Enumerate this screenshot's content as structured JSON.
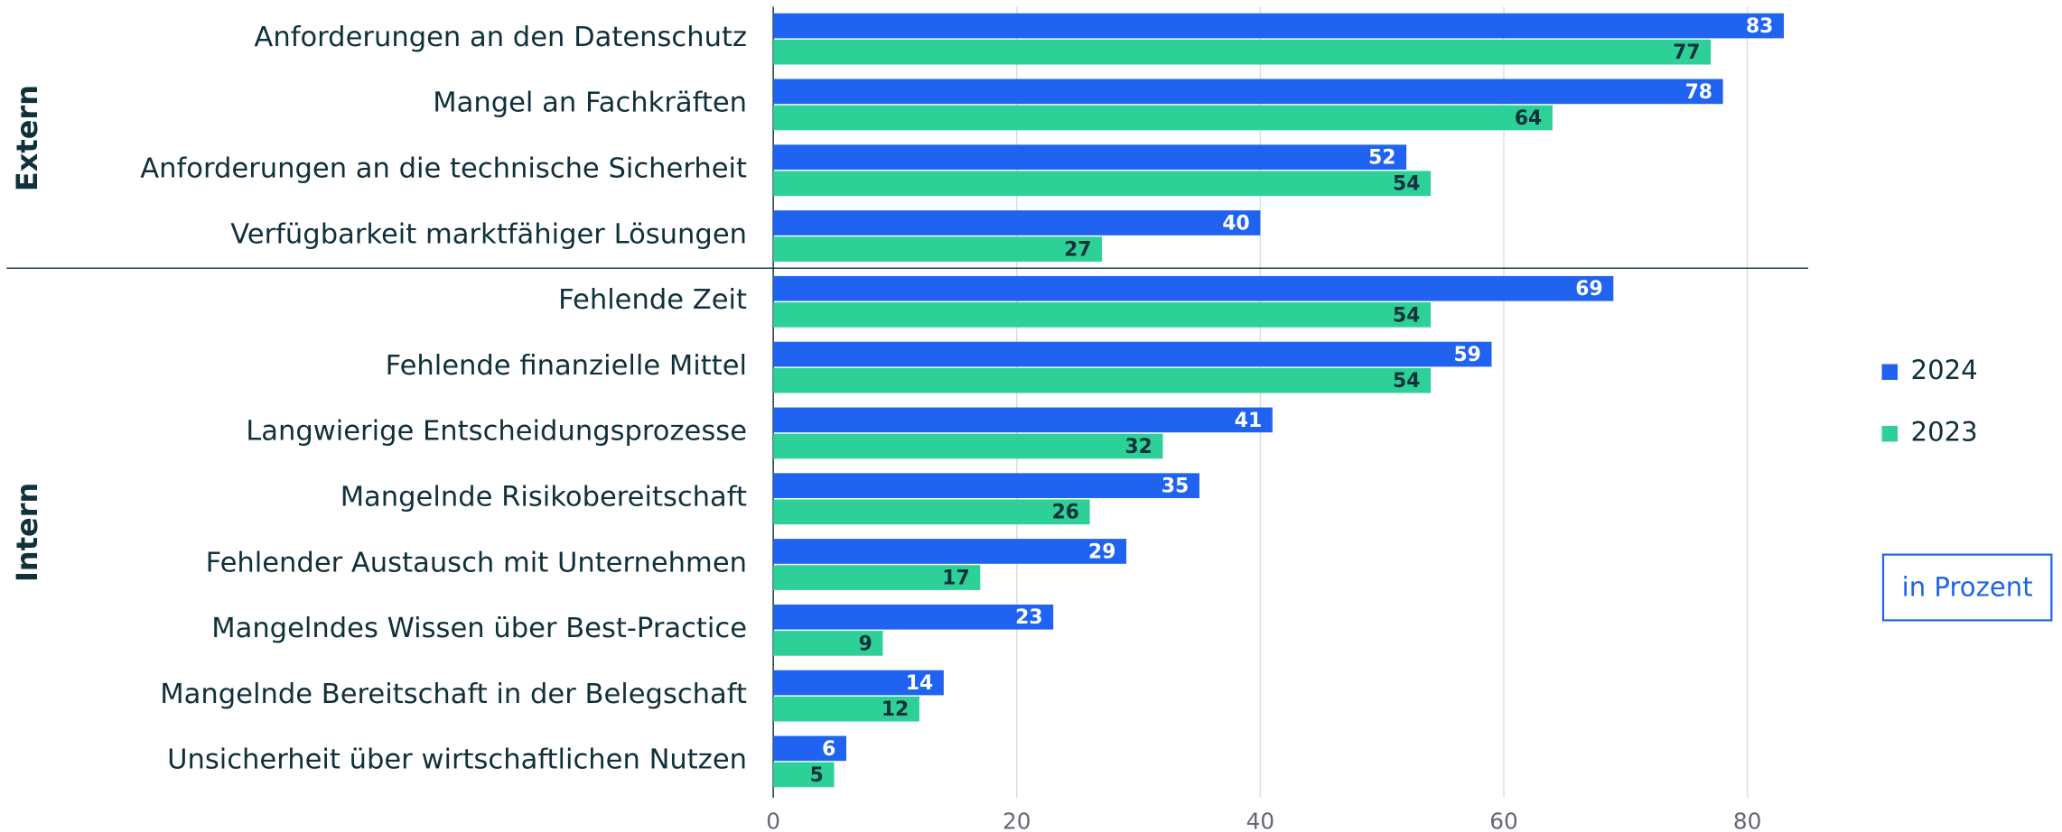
{
  "chart_data": {
    "type": "hbar_grouped",
    "groups": [
      {
        "name": "Extern",
        "categories": [
          "Anforderungen an den Datenschutz",
          "Mangel an Fachkräften",
          "Anforderungen an die technische Sicherheit",
          "Verfügbarkeit marktfähiger Lösungen"
        ]
      },
      {
        "name": "Intern",
        "categories": [
          "Fehlende Zeit",
          "Fehlende finanzielle Mittel",
          "Langwierige Entscheidungsprozesse",
          "Mangelnde Risikobereitschaft",
          "Fehlender Austausch mit Unternehmen",
          "Mangelndes Wissen über Best-Practice",
          "Mangelnde Bereitschaft in der Belegschaft",
          "Unsicherheit über wirtschaftlichen Nutzen"
        ]
      }
    ],
    "series": [
      {
        "name": "2024",
        "color": "#1f63f0",
        "label_color": "#ffffff",
        "values": [
          83,
          78,
          52,
          40,
          69,
          59,
          41,
          35,
          29,
          23,
          14,
          6
        ]
      },
      {
        "name": "2023",
        "color": "#2dd198",
        "label_color": "#10303a",
        "values": [
          77,
          64,
          54,
          27,
          54,
          54,
          32,
          26,
          17,
          9,
          12,
          5
        ]
      }
    ],
    "xlim": [
      0,
      85
    ],
    "xticks": [
      0,
      20,
      40,
      60,
      80
    ],
    "grid": true,
    "legend": "right",
    "annotation": "in Prozent"
  }
}
